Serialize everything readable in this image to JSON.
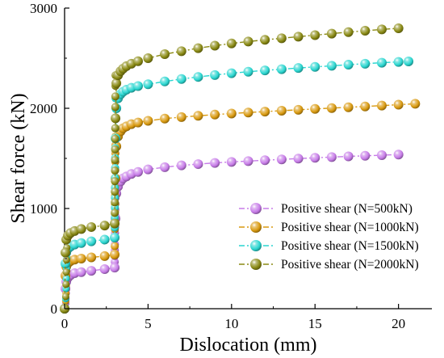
{
  "chart_data": {
    "type": "line",
    "xlabel": "Dislocation (mm)",
    "ylabel": "Shear force (kN)",
    "xlim": [
      0,
      22
    ],
    "ylim": [
      0,
      3000
    ],
    "xticks": [
      "0",
      "5",
      "10",
      "15",
      "20"
    ],
    "yticks": [
      "0",
      "1000",
      "2000",
      "3000"
    ],
    "grid": false,
    "legend_position": "bottom-right",
    "series": [
      {
        "name": "Positive shear (N=500kN)",
        "color": "#c77ce8",
        "x": [
          0,
          0.05,
          0.1,
          0.2,
          0.35,
          0.6,
          1.0,
          1.6,
          2.4,
          3.0,
          3.05,
          3.1,
          3.2,
          3.35,
          3.5,
          3.7,
          4.0,
          4.4,
          5.0,
          6.0,
          7.0,
          8.0,
          9.0,
          10.0,
          11.0,
          12.0,
          13.0,
          14.0,
          15.0,
          16.0,
          17.0,
          18.0,
          19.0,
          20.0
        ],
        "y": [
          0,
          200,
          270,
          310,
          335,
          355,
          365,
          378,
          395,
          410,
          900,
          1150,
          1220,
          1270,
          1300,
          1320,
          1345,
          1365,
          1390,
          1412,
          1430,
          1443,
          1455,
          1465,
          1473,
          1482,
          1490,
          1498,
          1506,
          1513,
          1520,
          1526,
          1532,
          1538
        ]
      },
      {
        "name": "Positive shear (N=1000kN)",
        "color": "#d99a10",
        "x": [
          0,
          0.05,
          0.1,
          0.2,
          0.35,
          0.6,
          1.0,
          1.6,
          2.4,
          3.0,
          3.05,
          3.1,
          3.2,
          3.35,
          3.5,
          3.7,
          4.0,
          4.4,
          5.0,
          6.0,
          7.0,
          8.0,
          9.0,
          10.0,
          11.0,
          12.0,
          13.0,
          14.0,
          15.0,
          16.0,
          17.0,
          18.0,
          19.0,
          20.0,
          21.0
        ],
        "y": [
          0,
          330,
          420,
          455,
          475,
          490,
          500,
          512,
          525,
          540,
          1300,
          1620,
          1720,
          1770,
          1800,
          1820,
          1842,
          1858,
          1875,
          1897,
          1912,
          1925,
          1937,
          1948,
          1958,
          1967,
          1976,
          1985,
          1994,
          2002,
          2010,
          2018,
          2027,
          2036,
          2045
        ]
      },
      {
        "name": "Positive shear (N=1500kN)",
        "color": "#2ad6d0",
        "x": [
          0,
          0.05,
          0.1,
          0.2,
          0.35,
          0.6,
          1.0,
          1.6,
          2.4,
          3.0,
          3.05,
          3.1,
          3.2,
          3.35,
          3.5,
          3.7,
          4.0,
          4.4,
          5.0,
          6.0,
          7.0,
          8.0,
          9.0,
          10.0,
          11.0,
          12.0,
          13.0,
          14.0,
          15.0,
          16.0,
          17.0,
          18.0,
          19.0,
          20.0,
          20.6
        ],
        "y": [
          0,
          450,
          560,
          600,
          620,
          640,
          655,
          672,
          690,
          710,
          1700,
          2000,
          2100,
          2140,
          2165,
          2185,
          2205,
          2222,
          2240,
          2268,
          2292,
          2313,
          2332,
          2350,
          2365,
          2378,
          2390,
          2402,
          2413,
          2424,
          2435,
          2445,
          2455,
          2463,
          2468
        ]
      },
      {
        "name": "Positive shear (N=2000kN)",
        "color": "#8a8a14",
        "x": [
          0,
          0.05,
          0.1,
          0.2,
          0.35,
          0.6,
          1.0,
          1.6,
          2.4,
          3.0,
          3.05,
          3.1,
          3.2,
          3.35,
          3.5,
          3.7,
          4.0,
          4.4,
          5.0,
          6.0,
          7.0,
          8.0,
          9.0,
          10.0,
          11.0,
          12.0,
          13.0,
          14.0,
          15.0,
          16.0,
          17.0,
          18.0,
          19.0,
          20.0
        ],
        "y": [
          0,
          560,
          690,
          730,
          755,
          775,
          795,
          815,
          830,
          850,
          1900,
          2250,
          2330,
          2370,
          2395,
          2420,
          2445,
          2470,
          2500,
          2540,
          2570,
          2600,
          2625,
          2647,
          2666,
          2683,
          2699,
          2715,
          2730,
          2745,
          2760,
          2774,
          2787,
          2798
        ]
      }
    ]
  }
}
